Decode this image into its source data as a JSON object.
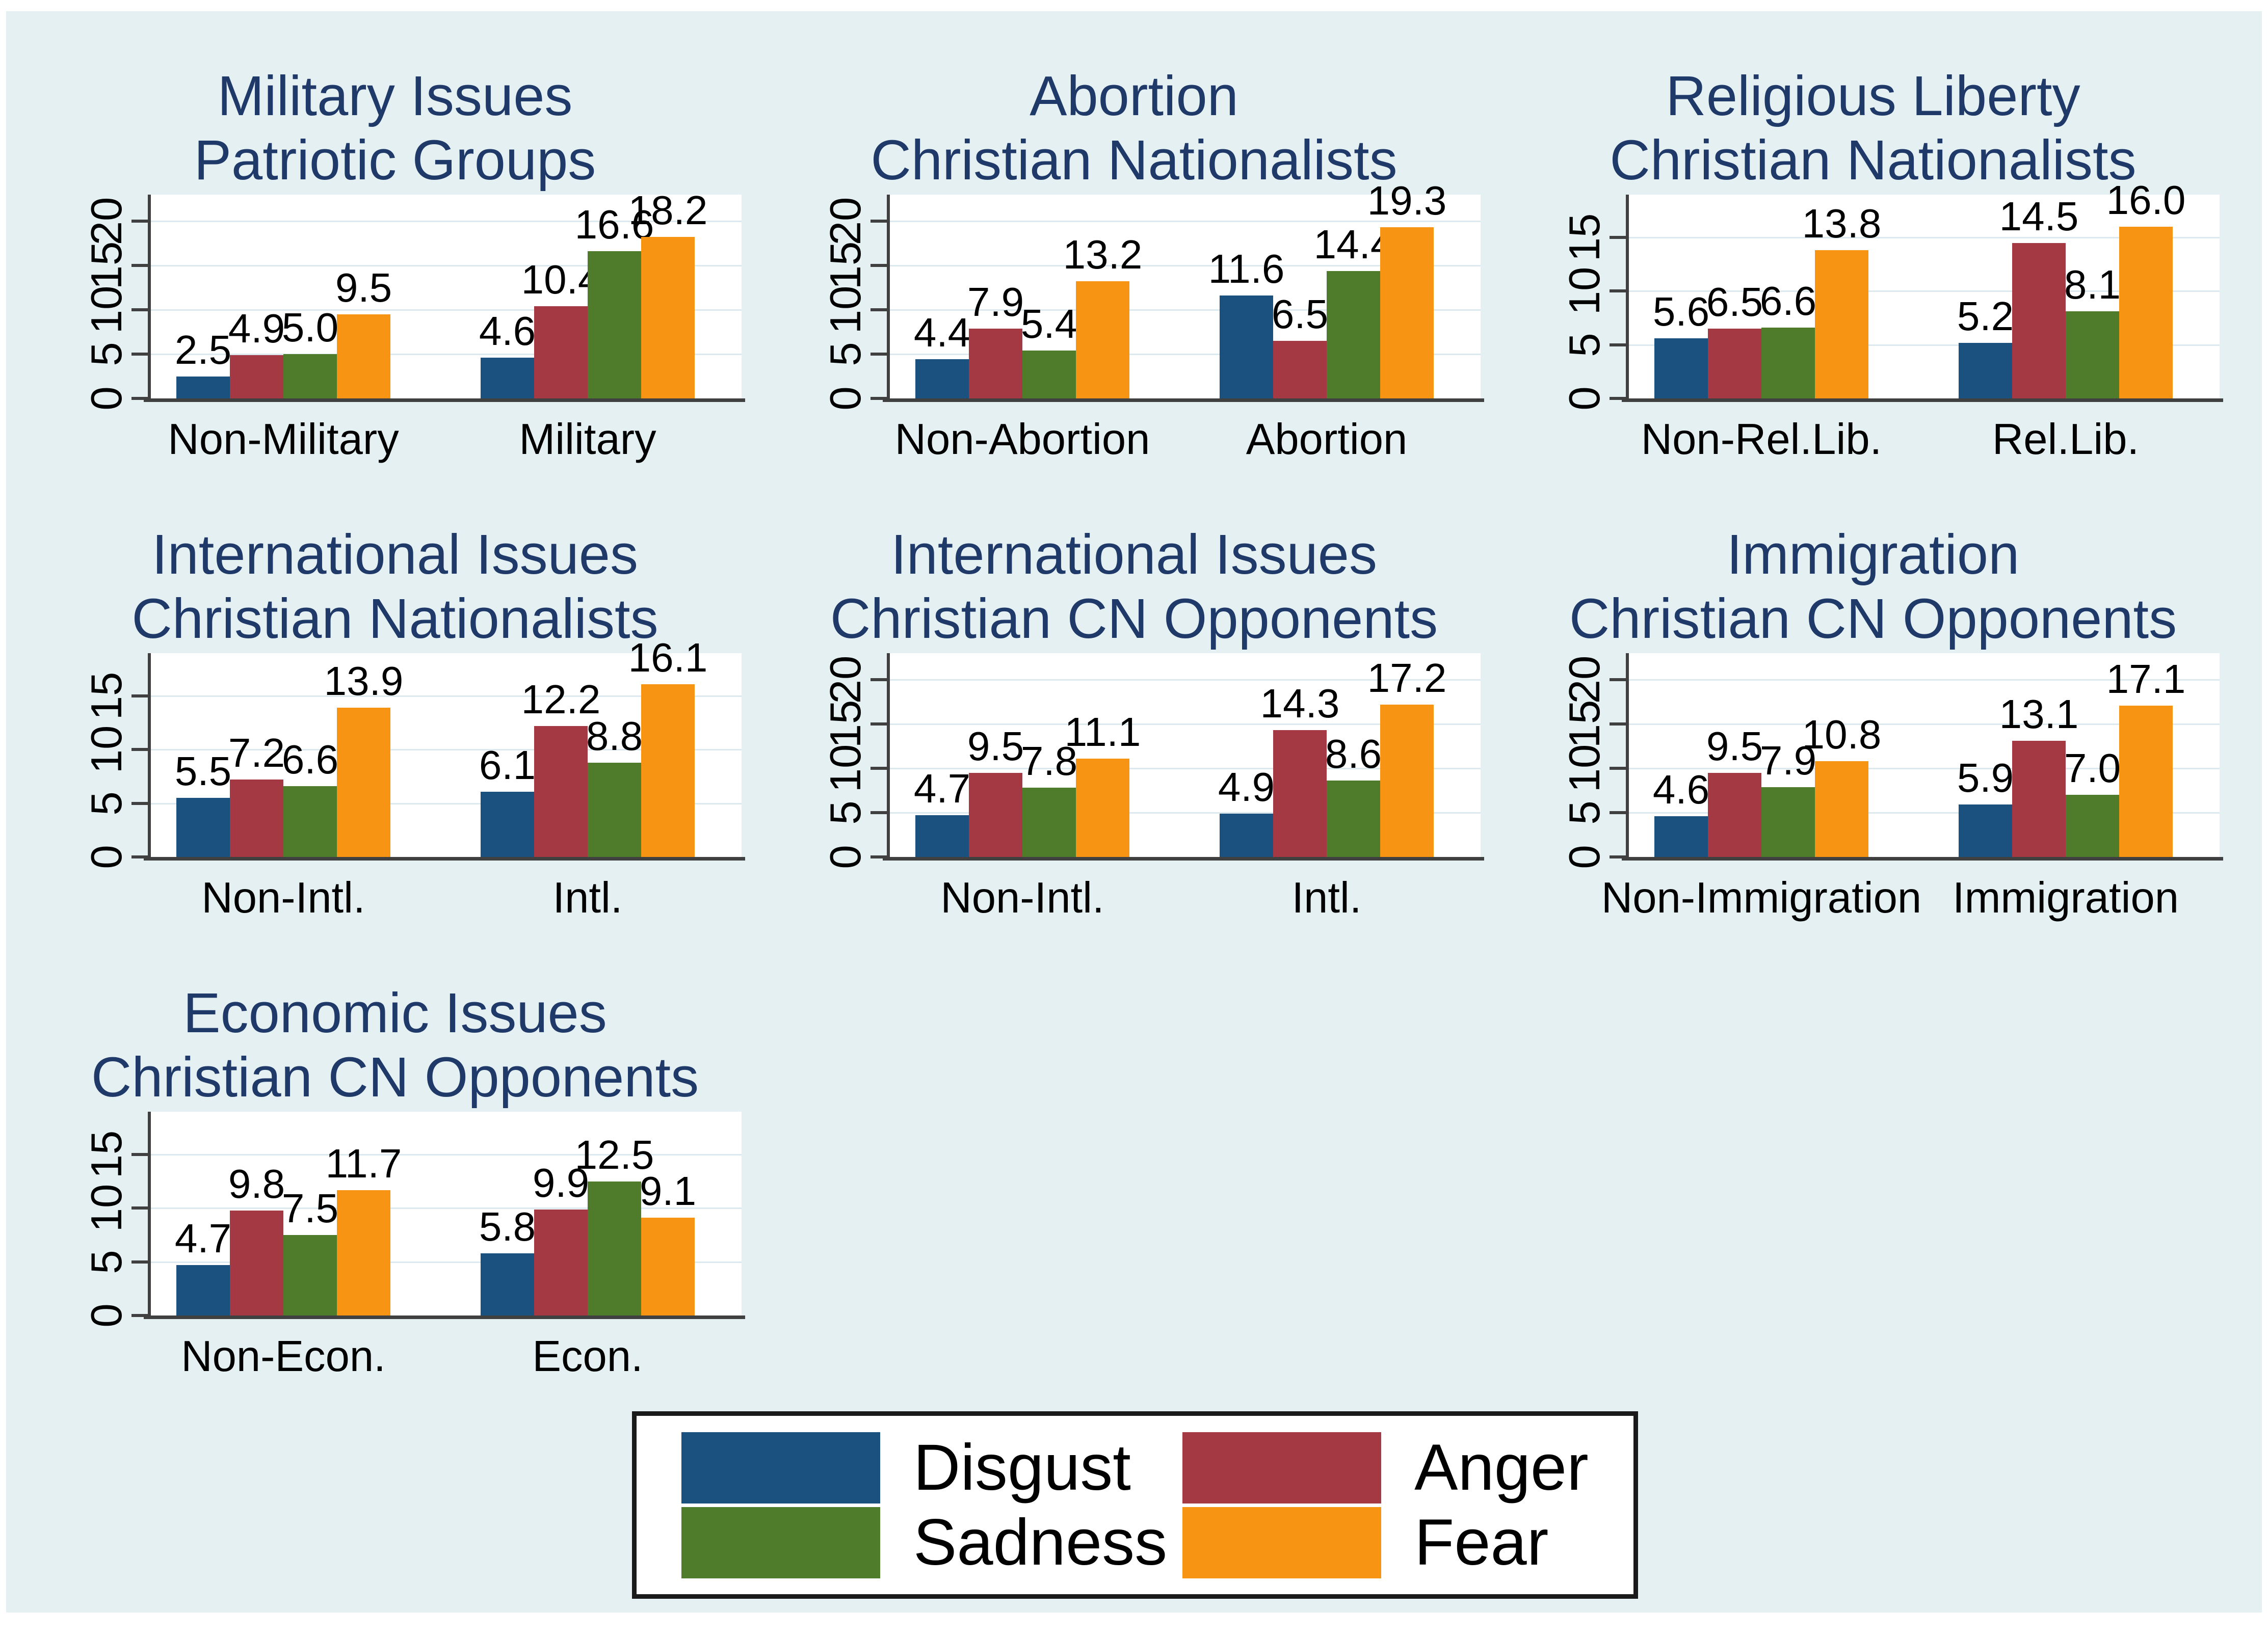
{
  "colors": {
    "page_bg": "#FFFFFF",
    "panel_bg": "#E5F0F3",
    "plot_bg": "#FFFFFF",
    "title_text": "#1F3969",
    "label_text": "#000000",
    "axis": "#404040",
    "gridline": "#DCE9EE",
    "disgust": "#1B517E",
    "anger": "#A43944",
    "sadness": "#4E7C2B",
    "fear": "#F89414"
  },
  "legend": {
    "items": [
      {
        "label": "Disgust",
        "color": "#1B517E"
      },
      {
        "label": "Anger",
        "color": "#A43944"
      },
      {
        "label": "Sadness",
        "color": "#4E7C2B"
      },
      {
        "label": "Fear",
        "color": "#F89414"
      }
    ]
  },
  "chart_data": [
    {
      "type": "bar",
      "title_lines": [
        "Military Issues",
        "Patriotic Groups"
      ],
      "categories": [
        "Non-Military",
        "Military"
      ],
      "series": [
        {
          "name": "Disgust",
          "values": [
            2.5,
            4.6
          ]
        },
        {
          "name": "Anger",
          "values": [
            4.9,
            10.4
          ]
        },
        {
          "name": "Sadness",
          "values": [
            5.0,
            16.6
          ]
        },
        {
          "name": "Fear",
          "values": [
            9.5,
            18.2
          ]
        }
      ],
      "yticks": [
        0,
        5,
        10,
        15,
        20
      ],
      "ylim": [
        0,
        23
      ],
      "grid": true,
      "legend_position": "bottom-shared"
    },
    {
      "type": "bar",
      "title_lines": [
        "Abortion",
        "Christian Nationalists"
      ],
      "categories": [
        "Non-Abortion",
        "Abortion"
      ],
      "series": [
        {
          "name": "Disgust",
          "values": [
            4.4,
            11.6
          ]
        },
        {
          "name": "Anger",
          "values": [
            7.9,
            6.5
          ]
        },
        {
          "name": "Sadness",
          "values": [
            5.4,
            14.4
          ]
        },
        {
          "name": "Fear",
          "values": [
            13.2,
            19.3
          ]
        }
      ],
      "yticks": [
        0,
        5,
        10,
        15,
        20
      ],
      "ylim": [
        0,
        23
      ],
      "grid": true,
      "legend_position": "bottom-shared"
    },
    {
      "type": "bar",
      "title_lines": [
        "Religious Liberty",
        "Christian Nationalists"
      ],
      "categories": [
        "Non-Rel.Lib.",
        "Rel.Lib."
      ],
      "series": [
        {
          "name": "Disgust",
          "values": [
            5.6,
            5.2
          ]
        },
        {
          "name": "Anger",
          "values": [
            6.5,
            14.5
          ]
        },
        {
          "name": "Sadness",
          "values": [
            6.6,
            8.1
          ]
        },
        {
          "name": "Fear",
          "values": [
            13.8,
            16.0
          ]
        }
      ],
      "yticks": [
        0,
        5,
        10,
        15
      ],
      "ylim": [
        0,
        19
      ],
      "grid": true,
      "legend_position": "bottom-shared"
    },
    {
      "type": "bar",
      "title_lines": [
        "International Issues",
        "Christian Nationalists"
      ],
      "categories": [
        "Non-Intl.",
        "Intl."
      ],
      "series": [
        {
          "name": "Disgust",
          "values": [
            5.5,
            6.1
          ]
        },
        {
          "name": "Anger",
          "values": [
            7.2,
            12.2
          ]
        },
        {
          "name": "Sadness",
          "values": [
            6.6,
            8.8
          ]
        },
        {
          "name": "Fear",
          "values": [
            13.9,
            16.1
          ]
        }
      ],
      "yticks": [
        0,
        5,
        10,
        15
      ],
      "ylim": [
        0,
        19
      ],
      "grid": true,
      "legend_position": "bottom-shared"
    },
    {
      "type": "bar",
      "title_lines": [
        "International Issues",
        "Christian CN Opponents"
      ],
      "categories": [
        "Non-Intl.",
        "Intl."
      ],
      "series": [
        {
          "name": "Disgust",
          "values": [
            4.7,
            4.9
          ]
        },
        {
          "name": "Anger",
          "values": [
            9.5,
            14.3
          ]
        },
        {
          "name": "Sadness",
          "values": [
            7.8,
            8.6
          ]
        },
        {
          "name": "Fear",
          "values": [
            11.1,
            17.2
          ]
        }
      ],
      "yticks": [
        0,
        5,
        10,
        15,
        20
      ],
      "ylim": [
        0,
        23
      ],
      "grid": true,
      "legend_position": "bottom-shared"
    },
    {
      "type": "bar",
      "title_lines": [
        "Immigration",
        "Christian CN Opponents"
      ],
      "categories": [
        "Non-Immigration",
        "Immigration"
      ],
      "series": [
        {
          "name": "Disgust",
          "values": [
            4.6,
            5.9
          ]
        },
        {
          "name": "Anger",
          "values": [
            9.5,
            13.1
          ]
        },
        {
          "name": "Sadness",
          "values": [
            7.9,
            7.0
          ]
        },
        {
          "name": "Fear",
          "values": [
            10.8,
            17.1
          ]
        }
      ],
      "yticks": [
        0,
        5,
        10,
        15,
        20
      ],
      "ylim": [
        0,
        23
      ],
      "grid": true,
      "legend_position": "bottom-shared"
    },
    {
      "type": "bar",
      "title_lines": [
        "Economic Issues",
        "Christian CN Opponents"
      ],
      "categories": [
        "Non-Econ.",
        "Econ."
      ],
      "series": [
        {
          "name": "Disgust",
          "values": [
            4.7,
            5.8
          ]
        },
        {
          "name": "Anger",
          "values": [
            9.8,
            9.9
          ]
        },
        {
          "name": "Sadness",
          "values": [
            7.5,
            12.5
          ]
        },
        {
          "name": "Fear",
          "values": [
            11.7,
            9.1
          ]
        }
      ],
      "yticks": [
        0,
        5,
        10,
        15
      ],
      "ylim": [
        0,
        19
      ],
      "grid": true,
      "legend_position": "bottom-shared"
    }
  ]
}
